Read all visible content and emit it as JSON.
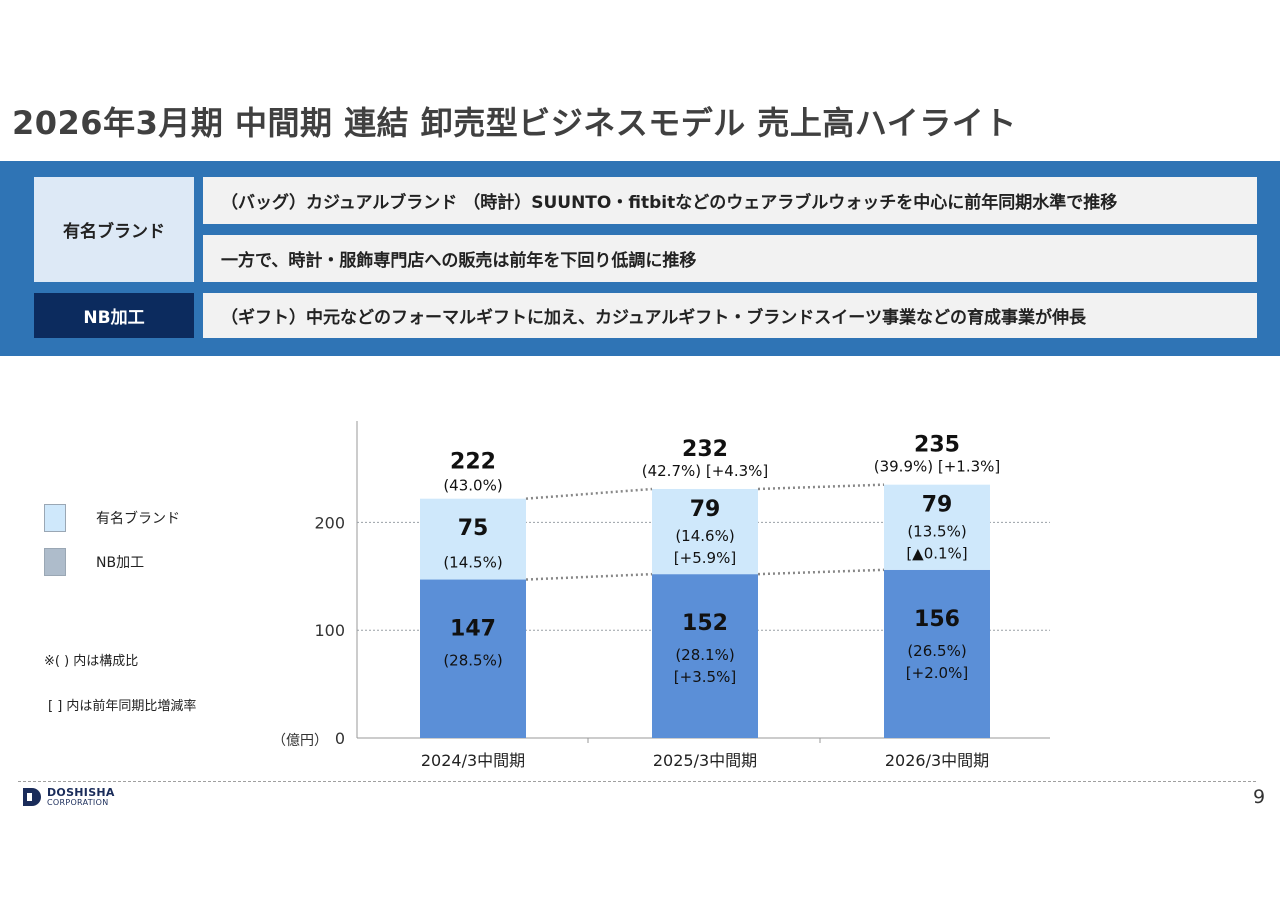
{
  "page": {
    "title": "2026年3月期 中間期 連結 卸売型ビジネスモデル 売上高ハイライト",
    "page_number": "9"
  },
  "summary": {
    "brand_label": "有名ブランド",
    "nb_label": "NB加工",
    "rows": [
      "（バッグ）カジュアルブランド （時計）SUUNTO・fitbitなどのウェアラブルウォッチを中心に前年同期水準で推移",
      "一方で、時計・服飾専門店への販売は前年を下回り低調に推移",
      "（ギフト）中元などのフォーマルギフトに加え、カジュアルギフト・ブランドスイーツ事業などの育成事業が伸長"
    ]
  },
  "legend": {
    "brand": "有名ブランド",
    "nb": "NB加工",
    "note1": "※( ) 内は構成比",
    "note2": "[ ] 内は前年同期比増減率"
  },
  "logo": {
    "line1": "DOSHISHA",
    "line2": "CORPORATION"
  },
  "colors": {
    "nb": "#5b8fd7",
    "brand": "#cfe8fb",
    "band": "#2f74b5",
    "dark": "#0c2b5e"
  },
  "chart_data": {
    "type": "bar",
    "stacked": true,
    "categories": [
      "2024/3中間期",
      "2025/3中間期",
      "2026/3中間期"
    ],
    "series": [
      {
        "name": "NB加工",
        "values": [
          147,
          152,
          156
        ],
        "share": [
          "(28.5%)",
          "(28.1%)",
          "(26.5%)"
        ],
        "growth": [
          "",
          "[+3.5%]",
          "[+2.0%]"
        ]
      },
      {
        "name": "有名ブランド",
        "values": [
          75,
          79,
          79
        ],
        "share": [
          "(14.5%)",
          "(14.6%)",
          "(13.5%)"
        ],
        "growth": [
          "",
          "[+5.9%]",
          "[▲0.1%]"
        ]
      }
    ],
    "totals": [
      222,
      232,
      235
    ],
    "total_share": [
      "(43.0%)",
      "(42.7%)",
      "(39.9%)"
    ],
    "total_growth": [
      "",
      "[+4.3%]",
      "[+1.3%]"
    ],
    "y_ticks": [
      0,
      100,
      200
    ],
    "ylim": [
      0,
      292
    ],
    "ylabel": "（億円）",
    "grid": true
  }
}
